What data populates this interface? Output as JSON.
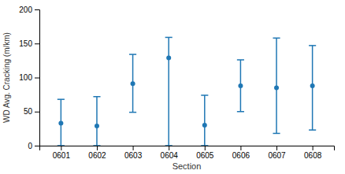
{
  "chart_data": {
    "type": "errorbar",
    "categories": [
      "0601",
      "0602",
      "0603",
      "0604",
      "0605",
      "0606",
      "0607",
      "0608"
    ],
    "values": [
      33,
      29,
      91,
      129,
      30,
      88,
      85,
      88
    ],
    "upper": [
      68,
      72,
      134,
      159,
      74,
      126,
      158,
      147
    ],
    "lower": [
      0,
      0,
      49,
      0,
      0,
      50,
      18,
      23
    ],
    "xlabel": "Section",
    "ylabel": "WD Avg. Cracking (m/km)",
    "ylim": [
      0,
      200
    ],
    "yticks": [
      0,
      50,
      100,
      150,
      200
    ],
    "grid": false
  }
}
